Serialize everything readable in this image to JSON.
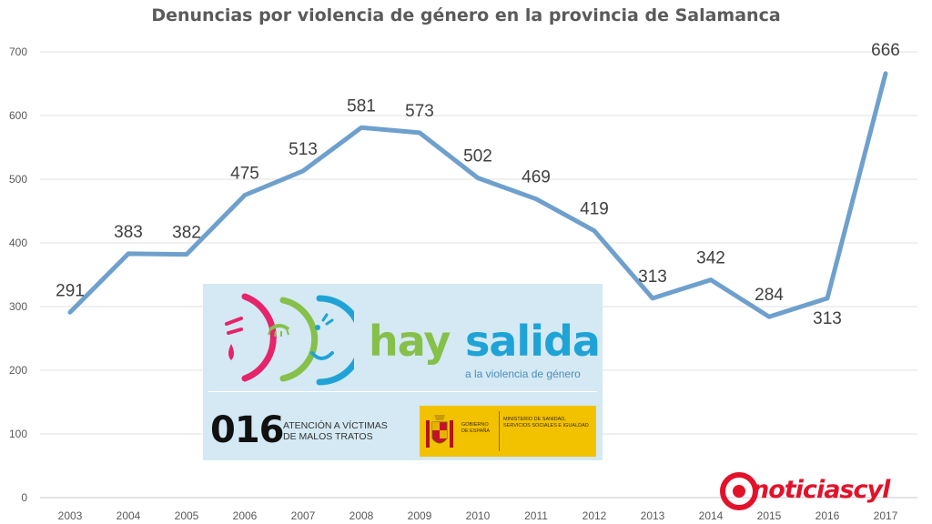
{
  "chart_data": {
    "type": "line",
    "title": "Denuncias por violencia de género en la provincia de Salamanca",
    "x": [
      "2003",
      "2004",
      "2005",
      "2006",
      "2007",
      "2008",
      "2009",
      "2010",
      "2011",
      "2012",
      "2013",
      "2014",
      "2015",
      "2016",
      "2017"
    ],
    "series": [
      {
        "values": [
          291,
          383,
          382,
          475,
          513,
          581,
          573,
          502,
          469,
          419,
          313,
          342,
          284,
          313,
          666
        ]
      }
    ],
    "data_labels": [
      "291",
      "383",
      "382",
      "475",
      "513",
      "581",
      "573",
      "502",
      "469",
      "419",
      "313",
      "342",
      "284",
      "313",
      "666"
    ],
    "ylim": [
      0,
      700
    ],
    "yticks": [
      0,
      100,
      200,
      300,
      400,
      500,
      600,
      700
    ],
    "grid": true,
    "legend": "none",
    "line_color": "#6fa0cd"
  },
  "ad": {
    "word_hay": "hay",
    "word_salida": "salida",
    "subtitle": "a la violencia de género",
    "phone": "016",
    "phone_text": "ATENCIÓN A VÍCTIMAS DE MALOS TRATOS",
    "gov_left": "GOBIERNO DE ESPAÑA",
    "gov_right": "MINISTERIO DE SANIDAD, SERVICIOS SOCIALES E IGUALDAD",
    "colors": {
      "background": "#d4e9f3",
      "hay": "#86c04a",
      "salida": "#1fa3d6",
      "panel": "#f2c200"
    }
  },
  "source": {
    "logo_text": "noticiascyl",
    "color": "#e2122a"
  }
}
